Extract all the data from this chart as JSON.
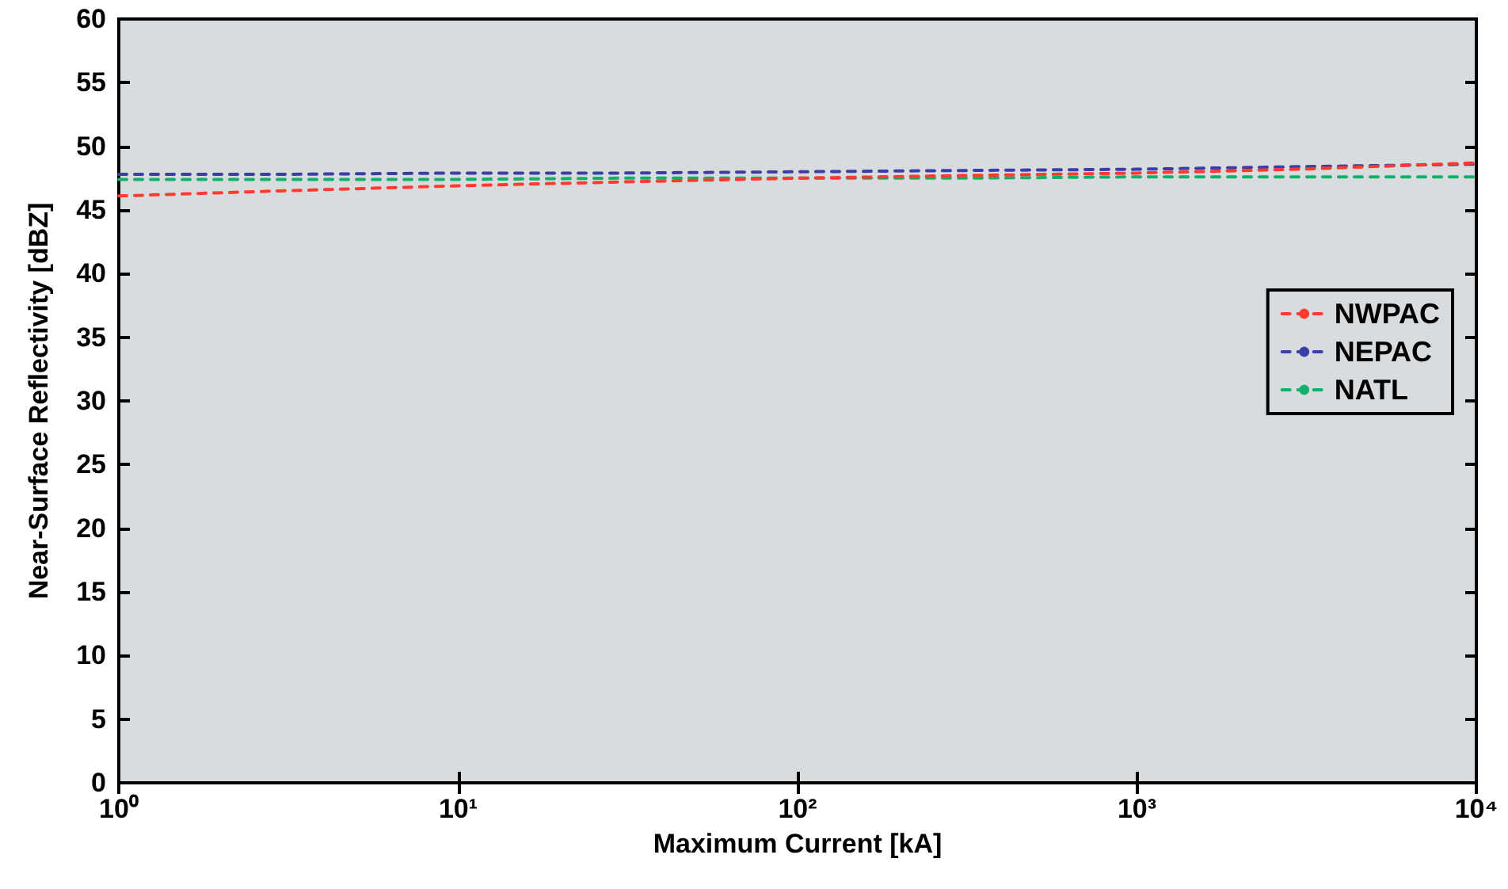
{
  "chart_data": {
    "type": "line",
    "xlabel": "Maximum Current [kA]",
    "ylabel": "Near-Surface Reflectivity [dBZ]",
    "log": "x",
    "xlim": [
      1,
      10000
    ],
    "xticks": [
      {
        "value": 1,
        "label": "10⁰"
      },
      {
        "value": 10,
        "label": "10¹"
      },
      {
        "value": 100,
        "label": "10²"
      },
      {
        "value": 1000,
        "label": "10³"
      },
      {
        "value": 10000,
        "label": "10⁴"
      }
    ],
    "ylim": [
      0,
      60
    ],
    "yticks": [
      0,
      5,
      10,
      15,
      20,
      25,
      30,
      35,
      40,
      45,
      50,
      55,
      60
    ],
    "x": [
      1,
      3,
      10,
      30,
      100,
      300,
      1000,
      3000,
      10000
    ],
    "series": [
      {
        "name": "NWPAC",
        "color": "#ff3b30",
        "values": [
          46.1,
          46.5,
          46.9,
          47.2,
          47.5,
          47.7,
          47.9,
          48.2,
          48.7
        ]
      },
      {
        "name": "NEPAC",
        "color": "#3a3fa8",
        "values": [
          47.8,
          47.8,
          47.9,
          47.9,
          48.0,
          48.1,
          48.2,
          48.4,
          48.6
        ]
      },
      {
        "name": "NATL",
        "color": "#12b06a",
        "values": [
          47.4,
          47.4,
          47.4,
          47.5,
          47.5,
          47.5,
          47.6,
          47.6,
          47.6
        ]
      }
    ],
    "grid": false,
    "legend": "right",
    "marker": "none",
    "line_style": "dashed"
  }
}
